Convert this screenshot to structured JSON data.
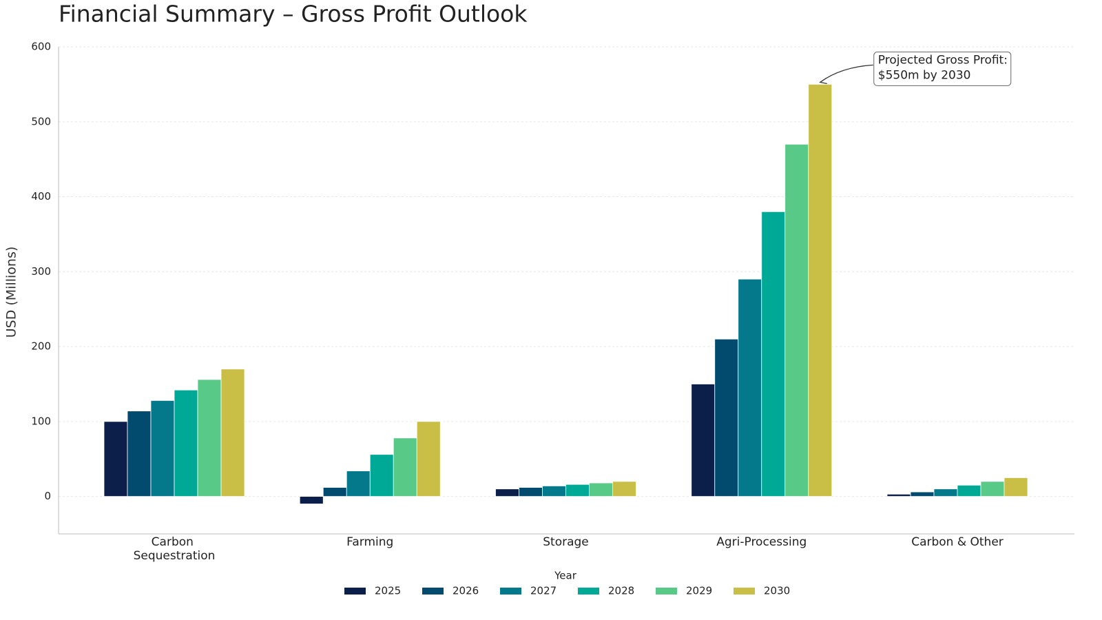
{
  "chart_data": {
    "type": "bar",
    "title": "Financial Summary – Gross Profit Outlook",
    "y_label": "USD (Millions)",
    "categories": [
      "Carbon Sequestration",
      "Farming",
      "Storage",
      "Agri-Processing",
      "Carbon & Other"
    ],
    "series": [
      {
        "name": "2025",
        "color": "#0c1f4b",
        "values": [
          100,
          -10,
          10,
          150,
          3
        ]
      },
      {
        "name": "2026",
        "color": "#034b6e",
        "values": [
          114,
          12,
          12,
          210,
          6
        ]
      },
      {
        "name": "2027",
        "color": "#03798b",
        "values": [
          128,
          34,
          14,
          290,
          10
        ]
      },
      {
        "name": "2028",
        "color": "#00a896",
        "values": [
          142,
          56,
          16,
          380,
          15
        ]
      },
      {
        "name": "2029",
        "color": "#58c987",
        "values": [
          156,
          78,
          18,
          470,
          20
        ]
      },
      {
        "name": "2030",
        "color": "#c9bf47",
        "values": [
          170,
          100,
          20,
          550,
          25
        ]
      }
    ],
    "ylim": [
      -50,
      600
    ],
    "yticks": [
      0,
      100,
      200,
      300,
      400,
      500,
      600
    ],
    "grid": true,
    "legend_title": "Year",
    "legend_position": "bottom",
    "annotation": {
      "lines": [
        "Projected Gross Profit:",
        "$550m by 2030"
      ],
      "series": 5,
      "category": 3
    }
  }
}
